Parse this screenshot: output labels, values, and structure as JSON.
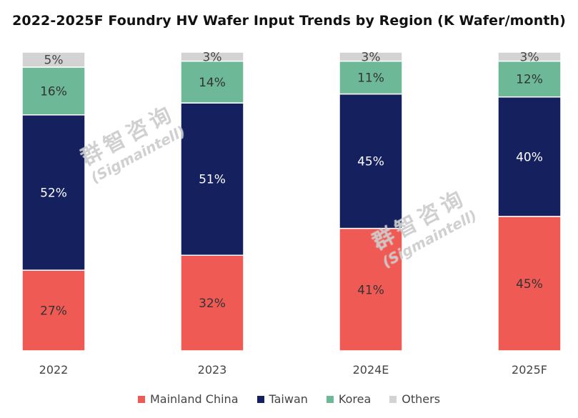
{
  "chart_data": {
    "type": "bar",
    "stacked": true,
    "title": "2022-2025F Foundry HV Wafer Input Trends by Region (K Wafer/month)",
    "categories": [
      "2022",
      "2023",
      "2024E",
      "2025F"
    ],
    "series": [
      {
        "name": "Mainland China",
        "values": [
          27,
          32,
          41,
          45
        ],
        "labels": [
          "27%",
          "32%",
          "41%",
          "45%"
        ]
      },
      {
        "name": "Taiwan",
        "values": [
          52,
          51,
          45,
          40
        ],
        "labels": [
          "52%",
          "51%",
          "45%",
          "40%"
        ]
      },
      {
        "name": "Korea",
        "values": [
          16,
          14,
          11,
          12
        ],
        "labels": [
          "16%",
          "14%",
          "11%",
          "12%"
        ]
      },
      {
        "name": "Others",
        "values": [
          5,
          3,
          3,
          3
        ],
        "labels": [
          "5%",
          "3%",
          "3%",
          "3%"
        ]
      }
    ],
    "ylim": [
      0,
      100
    ],
    "grid": false,
    "legend_position": "bottom"
  },
  "colors": {
    "Mainland China": "#f05a55",
    "Taiwan": "#15205e",
    "Korea": "#6db897",
    "Others": "#d3d3d3"
  },
  "label_colors": {
    "Mainland China": "#333333",
    "Taiwan": "#ffffff",
    "Korea": "#333333",
    "Others": "#444444"
  },
  "watermarks": [
    {
      "cn": "群智咨询",
      "en": "(Sigmaintell)"
    },
    {
      "cn": "群智咨询",
      "en": "(Sigmaintell)"
    }
  ]
}
